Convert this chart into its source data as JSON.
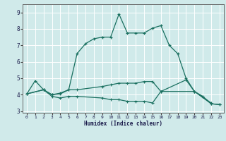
{
  "xlabel": "Humidex (Indice chaleur)",
  "xlim": [
    -0.5,
    23.5
  ],
  "ylim": [
    2.9,
    9.5
  ],
  "yticks": [
    3,
    4,
    5,
    6,
    7,
    8,
    9
  ],
  "xticks": [
    0,
    1,
    2,
    3,
    4,
    5,
    6,
    7,
    8,
    9,
    10,
    11,
    12,
    13,
    14,
    15,
    16,
    17,
    18,
    19,
    20,
    21,
    22,
    23
  ],
  "bg_color": "#d0eaea",
  "grid_color": "#ffffff",
  "line_color": "#1a7060",
  "line1_x": [
    0,
    1,
    2,
    3,
    4,
    5,
    6,
    7,
    8,
    9,
    10,
    11,
    12,
    13,
    14,
    15,
    16,
    17,
    18,
    19,
    20,
    21,
    22,
    23
  ],
  "line1_y": [
    4.05,
    4.85,
    4.3,
    4.0,
    4.05,
    4.3,
    6.5,
    7.1,
    7.4,
    7.5,
    7.5,
    8.9,
    7.75,
    7.75,
    7.75,
    8.05,
    8.2,
    7.0,
    6.5,
    5.0,
    4.2,
    3.9,
    3.45,
    3.4
  ],
  "line2_x": [
    0,
    2,
    3,
    4,
    5,
    6,
    9,
    10,
    11,
    12,
    13,
    14,
    15,
    16,
    19,
    20,
    22
  ],
  "line2_y": [
    4.05,
    4.3,
    4.0,
    4.1,
    4.3,
    4.3,
    4.5,
    4.6,
    4.7,
    4.7,
    4.7,
    4.8,
    4.8,
    4.2,
    4.9,
    4.2,
    3.5
  ],
  "line3_x": [
    0,
    2,
    3,
    4,
    5,
    6,
    9,
    10,
    11,
    12,
    13,
    14,
    15,
    16,
    20,
    22,
    23
  ],
  "line3_y": [
    4.05,
    4.3,
    3.9,
    3.8,
    3.9,
    3.9,
    3.8,
    3.7,
    3.7,
    3.6,
    3.6,
    3.6,
    3.5,
    4.2,
    4.2,
    3.45,
    3.4
  ]
}
